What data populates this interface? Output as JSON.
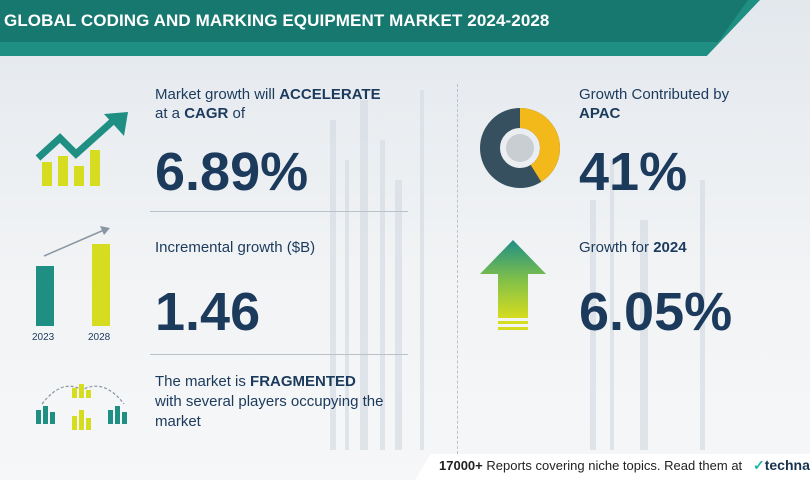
{
  "header": {
    "title": "GLOBAL CODING AND MARKING EQUIPMENT MARKET 2024-2028"
  },
  "metrics": {
    "cagr": {
      "line1_prefix": "Market growth will ",
      "line1_bold": "ACCELERATE",
      "line2_prefix": "at a ",
      "line2_bold": "CAGR",
      "line2_suffix": "  of",
      "value": "6.89%"
    },
    "incremental": {
      "label": "Incremental growth ($B)",
      "value": "1.46",
      "year_start": "2023",
      "year_end": "2028"
    },
    "market": {
      "line1_prefix": "The market is ",
      "line1_bold": "FRAGMENTED",
      "line2": "with several players occupying the",
      "line3": "market"
    },
    "apac": {
      "line1": "Growth Contributed by",
      "line2_bold": "APAC",
      "value": "41%",
      "donut_share": 0.41
    },
    "growth_year": {
      "label_prefix": "Growth for ",
      "label_bold": "2024",
      "value": "6.05%"
    }
  },
  "footer": {
    "count": "17000+",
    "text": " Reports covering niche topics. Read them at",
    "logo": "technav"
  },
  "colors": {
    "teal": "#1f8f84",
    "navy": "#1b3a5c",
    "yellow": "#d6dc1f",
    "gold": "#f3b81a",
    "slate": "#37505f"
  }
}
